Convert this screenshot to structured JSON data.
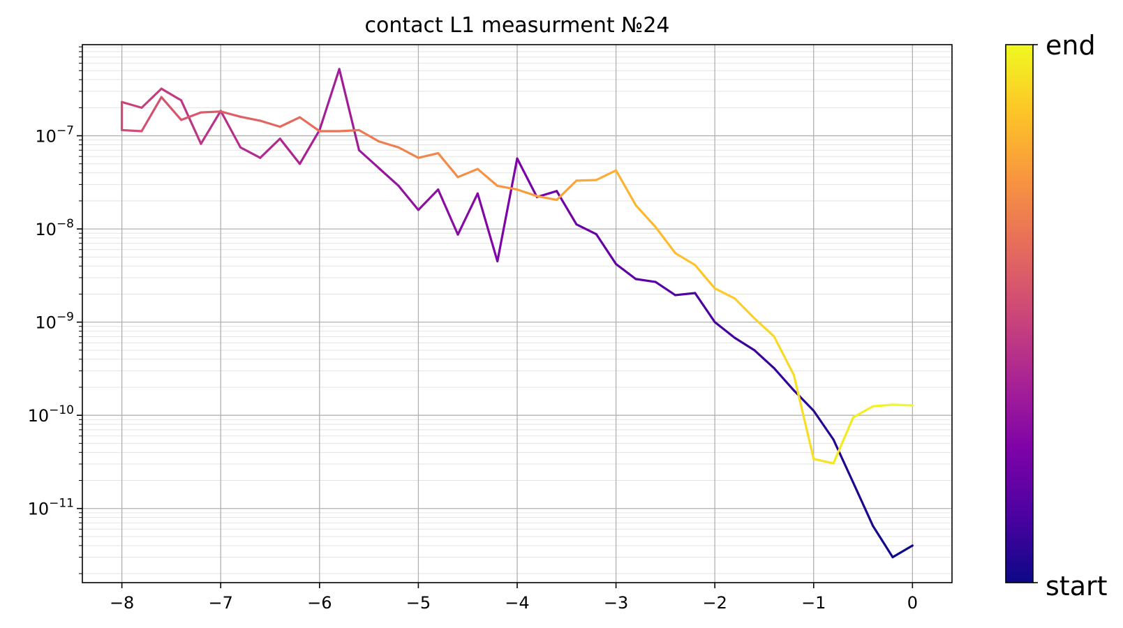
{
  "chart_data": {
    "type": "line",
    "title": "contact L1 measurment №24",
    "xlabel": "",
    "ylabel": "",
    "yscale": "log",
    "xlim": [
      -8.4,
      0.4
    ],
    "ylim": [
      1.6e-12,
      9.5e-07
    ],
    "grid": {
      "major": true,
      "minor_y": true
    },
    "x_ticks": [
      {
        "value": -8,
        "label": "−8"
      },
      {
        "value": -7,
        "label": "−7"
      },
      {
        "value": -6,
        "label": "−6"
      },
      {
        "value": -5,
        "label": "−5"
      },
      {
        "value": -4,
        "label": "−4"
      },
      {
        "value": -3,
        "label": "−3"
      },
      {
        "value": -2,
        "label": "−2"
      },
      {
        "value": -1,
        "label": "−1"
      },
      {
        "value": 0,
        "label": "0"
      }
    ],
    "y_ticks": [
      {
        "value": 1e-07,
        "base": "10",
        "exp": "−7"
      },
      {
        "value": 1e-08,
        "base": "10",
        "exp": "−8"
      },
      {
        "value": 1e-09,
        "base": "10",
        "exp": "−9"
      },
      {
        "value": 1e-10,
        "base": "10",
        "exp": "−10"
      },
      {
        "value": 1e-11,
        "base": "10",
        "exp": "−11"
      }
    ],
    "colormap": "plasma",
    "colorbar": {
      "bottom_label": "start",
      "top_label": "end"
    },
    "sweep": {
      "forward_x": [
        0,
        -0.2,
        -0.4,
        -0.6,
        -0.8,
        -1.0,
        -1.2,
        -1.4,
        -1.6,
        -1.8,
        -2.0,
        -2.2,
        -2.4,
        -2.6,
        -2.8,
        -3.0,
        -3.2,
        -3.4,
        -3.6,
        -3.8,
        -4.0,
        -4.2,
        -4.4,
        -4.6,
        -4.8,
        -5.0,
        -5.2,
        -5.4,
        -5.6,
        -5.8,
        -6.0,
        -6.2,
        -6.4,
        -6.6,
        -6.8,
        -7.0,
        -7.2,
        -7.4,
        -7.6,
        -7.8,
        -8.0
      ],
      "forward_y": [
        4e-12,
        3e-12,
        6.5e-12,
        1.9e-11,
        5.5e-11,
        1.12e-10,
        1.85e-10,
        3.2e-10,
        5e-10,
        6.8e-10,
        1e-09,
        2.05e-09,
        1.95e-09,
        2.7e-09,
        2.9e-09,
        4.2e-09,
        8.8e-09,
        1.12e-08,
        2.55e-08,
        2.2e-08,
        5.7e-08,
        4.5e-09,
        2.4e-08,
        8.7e-09,
        2.65e-08,
        1.6e-08,
        2.9e-08,
        4.5e-08,
        7e-08,
        5.2e-07,
        1.15e-07,
        5e-08,
        9.3e-08,
        5.8e-08,
        7.5e-08,
        1.85e-07,
        8.2e-08,
        2.4e-07,
        3.2e-07,
        2e-07,
        2.3e-07
      ],
      "reverse_x": [
        -8.0,
        -8.0,
        -7.8,
        -7.6,
        -7.4,
        -7.2,
        -7.0,
        -6.8,
        -6.6,
        -6.4,
        -6.2,
        -6.0,
        -5.8,
        -5.6,
        -5.4,
        -5.2,
        -5.0,
        -4.8,
        -4.6,
        -4.4,
        -4.2,
        -4.0,
        -3.8,
        -3.6,
        -3.4,
        -3.2,
        -3.0,
        -2.8,
        -2.6,
        -2.4,
        -2.2,
        -2.0,
        -1.8,
        -1.6,
        -1.4,
        -1.2,
        -1.0,
        -0.8,
        -0.6,
        -0.4,
        -0.2,
        0
      ],
      "reverse_y": [
        2.3e-07,
        1.15e-07,
        1.12e-07,
        2.6e-07,
        1.48e-07,
        1.78e-07,
        1.82e-07,
        1.6e-07,
        1.45e-07,
        1.25e-07,
        1.58e-07,
        1.12e-07,
        1.12e-07,
        1.15e-07,
        8.7e-08,
        7.5e-08,
        5.8e-08,
        6.5e-08,
        3.6e-08,
        4.4e-08,
        2.9e-08,
        2.65e-08,
        2.25e-08,
        2.05e-08,
        3.3e-08,
        3.35e-08,
        4.25e-08,
        1.8e-08,
        1.05e-08,
        5.5e-09,
        4.1e-09,
        2.3e-09,
        1.8e-09,
        1.1e-09,
        7e-10,
        2.7e-10,
        3.4e-11,
        3.05e-11,
        9.5e-11,
        1.25e-10,
        1.3e-10,
        1.28e-10
      ]
    }
  }
}
